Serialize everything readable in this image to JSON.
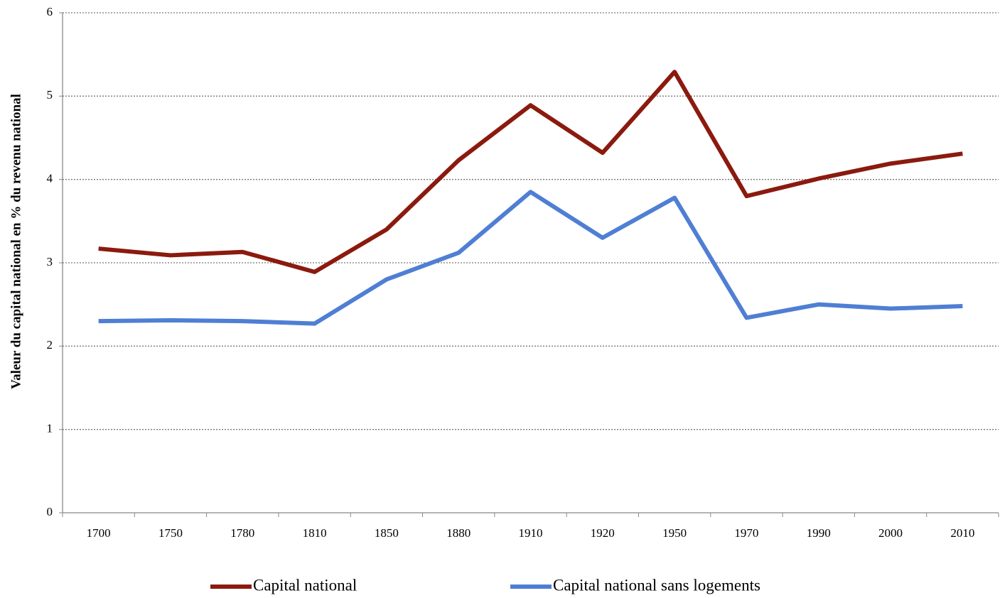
{
  "chart_data": {
    "type": "line",
    "y_label": "Valeur du capital national en % du revenu national",
    "categories": [
      "1700",
      "1750",
      "1780",
      "1810",
      "1850",
      "1880",
      "1910",
      "1920",
      "1950",
      "1970",
      "1990",
      "2000",
      "2010"
    ],
    "series": [
      {
        "name": "Capital national",
        "color": "#8b1a0e",
        "values": [
          3.17,
          3.09,
          3.13,
          2.89,
          3.4,
          4.23,
          4.89,
          4.32,
          5.29,
          3.8,
          4.01,
          4.19,
          4.31
        ]
      },
      {
        "name": "Capital national sans logements",
        "color": "#4f7fd4",
        "values": [
          2.3,
          2.31,
          2.3,
          2.27,
          2.8,
          3.12,
          3.85,
          3.3,
          3.78,
          2.34,
          2.5,
          2.45,
          2.48
        ]
      }
    ],
    "ylim": [
      0,
      6
    ],
    "yticks": [
      0,
      1,
      2,
      3,
      4,
      5,
      6
    ],
    "grid": true,
    "legend": "bottom"
  }
}
